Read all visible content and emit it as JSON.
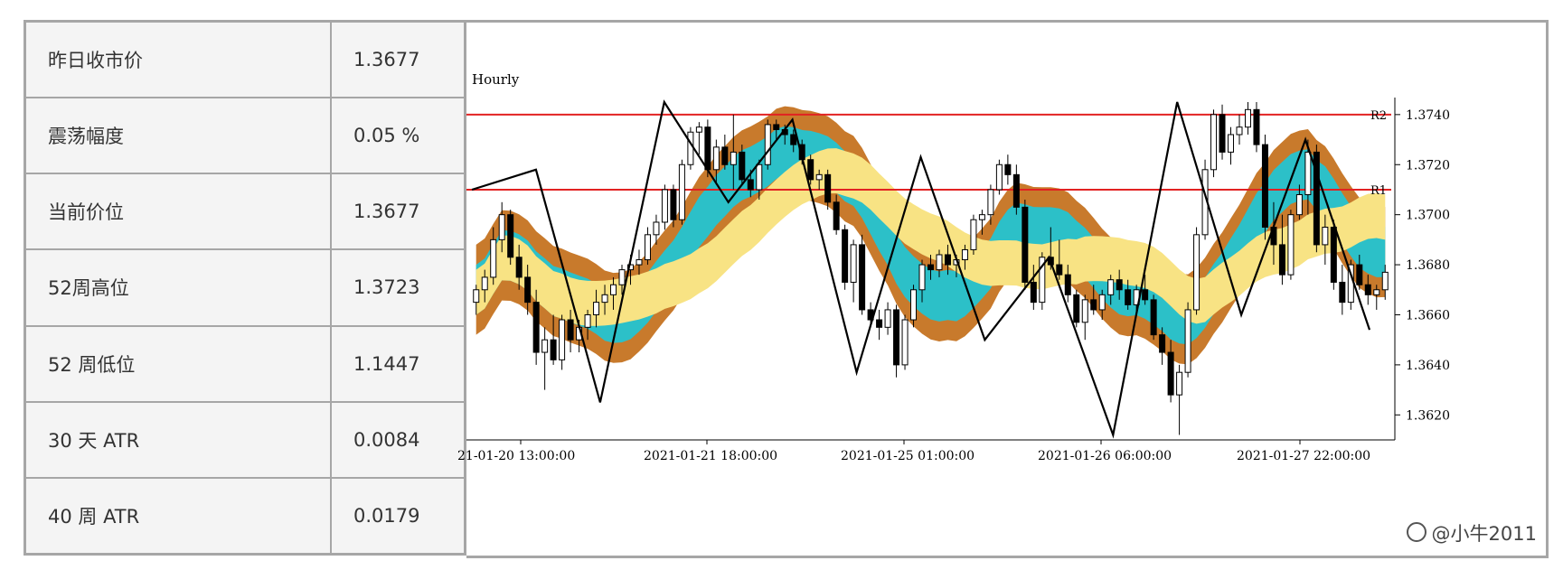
{
  "stats": [
    {
      "label": "昨日收市价",
      "value": "1.3677"
    },
    {
      "label": "震荡幅度",
      "value": "0.05 %"
    },
    {
      "label": "当前价位",
      "value": "1.3677"
    },
    {
      "label": "52周高位",
      "value": "1.3723"
    },
    {
      "label": "52 周低位",
      "value": "1.1447"
    },
    {
      "label": "30 天 ATR",
      "value": "0.0084"
    },
    {
      "label": "40 周 ATR",
      "value": "0.0179"
    }
  ],
  "watermark": "@小牛2011",
  "colors": {
    "brown": "#c87a2c",
    "cyan": "#2cc0c8",
    "yellow": "#f8e384",
    "resistance": "#e22222"
  },
  "chart_data": {
    "type": "candlestick",
    "title": "Hourly",
    "ylim": [
      1.361,
      1.3745
    ],
    "y_ticks": [
      1.362,
      1.364,
      1.366,
      1.368,
      1.37,
      1.372,
      1.374
    ],
    "x_ticks": [
      "21-01-20 13:00:00",
      "2021-01-21 18:00:00",
      "2021-01-25 01:00:00",
      "2021-01-26 06:00:00",
      "2021-01-27 22:00:00"
    ],
    "resistance": [
      {
        "name": "R2",
        "value": 1.374
      },
      {
        "name": "R1",
        "value": 1.371
      }
    ],
    "zigzag": [
      1.371,
      1.3718,
      1.3625,
      1.3745,
      1.3705,
      1.3738,
      1.3637,
      1.3723,
      1.365,
      1.3683,
      1.3612,
      1.3745,
      1.366,
      1.373,
      1.3654
    ],
    "candles": [
      [
        1.3665,
        1.3672,
        1.366,
        1.367
      ],
      [
        1.367,
        1.3678,
        1.3665,
        1.3675
      ],
      [
        1.3675,
        1.3695,
        1.3672,
        1.369
      ],
      [
        1.369,
        1.3705,
        1.3685,
        1.37
      ],
      [
        1.37,
        1.3702,
        1.368,
        1.3683
      ],
      [
        1.3683,
        1.3688,
        1.367,
        1.3675
      ],
      [
        1.3675,
        1.368,
        1.366,
        1.3665
      ],
      [
        1.3665,
        1.367,
        1.364,
        1.3645
      ],
      [
        1.3645,
        1.3655,
        1.363,
        1.365
      ],
      [
        1.365,
        1.366,
        1.364,
        1.3642
      ],
      [
        1.3642,
        1.366,
        1.3638,
        1.3658
      ],
      [
        1.3658,
        1.3662,
        1.3645,
        1.365
      ],
      [
        1.365,
        1.3658,
        1.3645,
        1.3655
      ],
      [
        1.3655,
        1.3662,
        1.365,
        1.366
      ],
      [
        1.366,
        1.367,
        1.3655,
        1.3665
      ],
      [
        1.3665,
        1.3672,
        1.366,
        1.3668
      ],
      [
        1.3668,
        1.3675,
        1.3662,
        1.3672
      ],
      [
        1.3672,
        1.368,
        1.3668,
        1.3678
      ],
      [
        1.3678,
        1.3684,
        1.3672,
        1.368
      ],
      [
        1.368,
        1.3686,
        1.3676,
        1.3682
      ],
      [
        1.3682,
        1.3695,
        1.368,
        1.3692
      ],
      [
        1.3692,
        1.37,
        1.3688,
        1.3697
      ],
      [
        1.3697,
        1.3712,
        1.3694,
        1.371
      ],
      [
        1.371,
        1.3712,
        1.3695,
        1.3698
      ],
      [
        1.3698,
        1.3722,
        1.3696,
        1.372
      ],
      [
        1.372,
        1.3735,
        1.3718,
        1.3733
      ],
      [
        1.3733,
        1.3737,
        1.3724,
        1.3735
      ],
      [
        1.3735,
        1.3738,
        1.3715,
        1.3718
      ],
      [
        1.3718,
        1.373,
        1.3712,
        1.3727
      ],
      [
        1.3727,
        1.3732,
        1.3718,
        1.372
      ],
      [
        1.372,
        1.374,
        1.371,
        1.3725
      ],
      [
        1.3725,
        1.3728,
        1.3712,
        1.3714
      ],
      [
        1.3714,
        1.3718,
        1.3707,
        1.371
      ],
      [
        1.371,
        1.3722,
        1.3706,
        1.372
      ],
      [
        1.372,
        1.3738,
        1.3718,
        1.3736
      ],
      [
        1.3736,
        1.3738,
        1.373,
        1.3734
      ],
      [
        1.3734,
        1.3736,
        1.3728,
        1.3732
      ],
      [
        1.3732,
        1.3734,
        1.3725,
        1.3728
      ],
      [
        1.3728,
        1.373,
        1.372,
        1.3722
      ],
      [
        1.3722,
        1.3724,
        1.3712,
        1.3714
      ],
      [
        1.3714,
        1.3718,
        1.371,
        1.3716
      ],
      [
        1.3716,
        1.3718,
        1.3702,
        1.3705
      ],
      [
        1.3705,
        1.3708,
        1.3692,
        1.3694
      ],
      [
        1.3694,
        1.3696,
        1.367,
        1.3673
      ],
      [
        1.3673,
        1.369,
        1.3665,
        1.3688
      ],
      [
        1.3688,
        1.3692,
        1.366,
        1.3662
      ],
      [
        1.3662,
        1.3665,
        1.3655,
        1.3658
      ],
      [
        1.3658,
        1.3662,
        1.365,
        1.3655
      ],
      [
        1.3655,
        1.3665,
        1.3652,
        1.3662
      ],
      [
        1.3662,
        1.3664,
        1.3635,
        1.364
      ],
      [
        1.364,
        1.366,
        1.3638,
        1.3658
      ],
      [
        1.3658,
        1.3672,
        1.3655,
        1.367
      ],
      [
        1.367,
        1.3682,
        1.3665,
        1.368
      ],
      [
        1.368,
        1.3684,
        1.3674,
        1.3678
      ],
      [
        1.3678,
        1.3686,
        1.3675,
        1.3684
      ],
      [
        1.3684,
        1.3688,
        1.3676,
        1.368
      ],
      [
        1.368,
        1.3684,
        1.3675,
        1.3682
      ],
      [
        1.3682,
        1.3688,
        1.3678,
        1.3686
      ],
      [
        1.3686,
        1.37,
        1.3684,
        1.3698
      ],
      [
        1.3698,
        1.3702,
        1.3692,
        1.37
      ],
      [
        1.37,
        1.3712,
        1.3696,
        1.371
      ],
      [
        1.371,
        1.3722,
        1.3708,
        1.372
      ],
      [
        1.372,
        1.3724,
        1.3712,
        1.3716
      ],
      [
        1.3716,
        1.372,
        1.37,
        1.3703
      ],
      [
        1.3703,
        1.3706,
        1.367,
        1.3673
      ],
      [
        1.3673,
        1.368,
        1.3662,
        1.3665
      ],
      [
        1.3665,
        1.3685,
        1.3662,
        1.3683
      ],
      [
        1.3683,
        1.3695,
        1.3678,
        1.368
      ],
      [
        1.368,
        1.369,
        1.3674,
        1.3676
      ],
      [
        1.3676,
        1.368,
        1.3665,
        1.3668
      ],
      [
        1.3668,
        1.367,
        1.3655,
        1.3657
      ],
      [
        1.3657,
        1.3668,
        1.365,
        1.3666
      ],
      [
        1.3666,
        1.3672,
        1.366,
        1.3662
      ],
      [
        1.3662,
        1.367,
        1.3658,
        1.3668
      ],
      [
        1.3668,
        1.3676,
        1.3664,
        1.3674
      ],
      [
        1.3674,
        1.3678,
        1.3666,
        1.367
      ],
      [
        1.367,
        1.3674,
        1.3662,
        1.3664
      ],
      [
        1.3664,
        1.3672,
        1.366,
        1.367
      ],
      [
        1.367,
        1.3676,
        1.3664,
        1.3666
      ],
      [
        1.3666,
        1.3668,
        1.365,
        1.3652
      ],
      [
        1.3652,
        1.3655,
        1.364,
        1.3645
      ],
      [
        1.3645,
        1.365,
        1.3625,
        1.3628
      ],
      [
        1.3628,
        1.364,
        1.3612,
        1.3637
      ],
      [
        1.3637,
        1.3665,
        1.3635,
        1.3662
      ],
      [
        1.3662,
        1.3695,
        1.366,
        1.3692
      ],
      [
        1.3692,
        1.3722,
        1.369,
        1.3718
      ],
      [
        1.3718,
        1.3742,
        1.3715,
        1.374
      ],
      [
        1.374,
        1.3744,
        1.3722,
        1.3725
      ],
      [
        1.3725,
        1.3735,
        1.372,
        1.3732
      ],
      [
        1.3732,
        1.374,
        1.3728,
        1.3735
      ],
      [
        1.3735,
        1.3745,
        1.3732,
        1.3742
      ],
      [
        1.3742,
        1.3745,
        1.3725,
        1.3728
      ],
      [
        1.3728,
        1.3732,
        1.369,
        1.3695
      ],
      [
        1.3695,
        1.3705,
        1.368,
        1.3688
      ],
      [
        1.3688,
        1.37,
        1.3672,
        1.3676
      ],
      [
        1.3676,
        1.3702,
        1.3674,
        1.37
      ],
      [
        1.37,
        1.3712,
        1.3698,
        1.3708
      ],
      [
        1.3708,
        1.373,
        1.37,
        1.3725
      ],
      [
        1.3725,
        1.3728,
        1.3685,
        1.3688
      ],
      [
        1.3688,
        1.37,
        1.368,
        1.3695
      ],
      [
        1.3695,
        1.3698,
        1.367,
        1.3673
      ],
      [
        1.3673,
        1.368,
        1.366,
        1.3665
      ],
      [
        1.3665,
        1.3682,
        1.3662,
        1.368
      ],
      [
        1.368,
        1.3684,
        1.367,
        1.3672
      ],
      [
        1.3672,
        1.3676,
        1.3664,
        1.3668
      ],
      [
        1.3668,
        1.3672,
        1.3662,
        1.367
      ],
      [
        1.367,
        1.368,
        1.3666,
        1.3677
      ]
    ]
  }
}
